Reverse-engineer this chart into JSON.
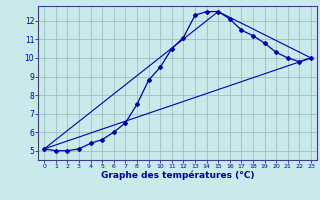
{
  "xlabel": "Graphe des températures (°C)",
  "background_color": "#c8eaea",
  "grid_color": "#a0c0c0",
  "line_color": "#0000aa",
  "xlim": [
    -0.5,
    23.5
  ],
  "ylim": [
    4.5,
    12.8
  ],
  "xticks": [
    0,
    1,
    2,
    3,
    4,
    5,
    6,
    7,
    8,
    9,
    10,
    11,
    12,
    13,
    14,
    15,
    16,
    17,
    18,
    19,
    20,
    21,
    22,
    23
  ],
  "yticks": [
    5,
    6,
    7,
    8,
    9,
    10,
    11,
    12
  ],
  "line1_x": [
    0,
    1,
    2,
    3,
    4,
    5,
    6,
    7,
    8,
    9,
    10,
    11,
    12,
    13,
    14,
    15,
    16,
    17,
    18,
    19,
    20,
    21,
    22,
    23
  ],
  "line1_y": [
    5.1,
    5.0,
    5.0,
    5.1,
    5.4,
    5.6,
    6.0,
    6.5,
    7.5,
    8.8,
    9.5,
    10.5,
    11.1,
    12.3,
    12.5,
    12.5,
    12.1,
    11.5,
    11.2,
    10.8,
    10.3,
    10.0,
    9.8,
    10.0
  ],
  "line2_x": [
    0,
    23
  ],
  "line2_y": [
    5.1,
    10.0
  ],
  "line3_x": [
    0,
    15,
    23
  ],
  "line3_y": [
    5.1,
    12.5,
    10.0
  ]
}
